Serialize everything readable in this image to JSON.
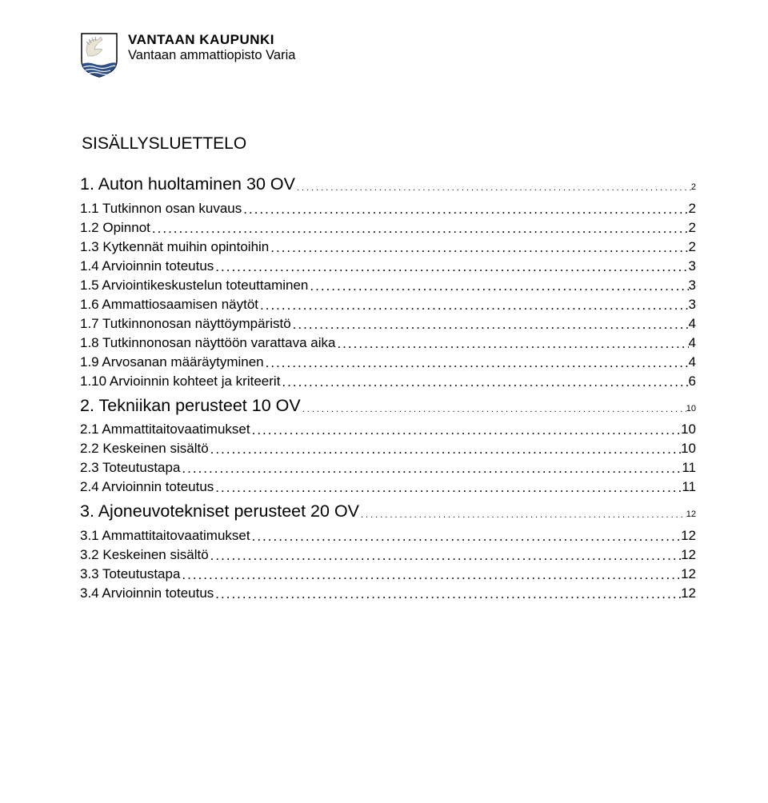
{
  "header": {
    "title": "VANTAAN KAUPUNKI",
    "subtitle": "Vantaan ammattiopisto Varia"
  },
  "toc_title": "SISÄLLYSLUETTELO",
  "entries": [
    {
      "level": 1,
      "label": "1. Auton huoltaminen 30 OV",
      "page": "2"
    },
    {
      "level": 2,
      "label": "1.1 Tutkinnon osan kuvaus",
      "page": "2"
    },
    {
      "level": 2,
      "label": "1.2 Opinnot",
      "page": "2"
    },
    {
      "level": 2,
      "label": "1.3 Kytkennät muihin opintoihin",
      "page": "2"
    },
    {
      "level": 2,
      "label": "1.4 Arvioinnin toteutus",
      "page": "3"
    },
    {
      "level": 2,
      "label": "1.5 Arviointikeskustelun toteuttaminen",
      "page": "3"
    },
    {
      "level": 2,
      "label": "1.6 Ammattiosaamisen näytöt",
      "page": "3"
    },
    {
      "level": 2,
      "label": "1.7 Tutkinnonosan näyttöympäristö",
      "page": "4"
    },
    {
      "level": 2,
      "label": "1.8 Tutkinnonosan näyttöön varattava aika",
      "page": "4"
    },
    {
      "level": 2,
      "label": "1.9 Arvosanan määräytyminen",
      "page": "4"
    },
    {
      "level": 2,
      "label": "1.10 Arvioinnin kohteet ja kriteerit",
      "page": "6"
    },
    {
      "level": 1,
      "label": "2. Tekniikan perusteet 10 OV",
      "page": "10"
    },
    {
      "level": 2,
      "label": "2.1 Ammattitaitovaatimukset",
      "page": "10"
    },
    {
      "level": 2,
      "label": "2.2 Keskeinen sisältö",
      "page": "10"
    },
    {
      "level": 2,
      "label": "2.3 Toteutustapa",
      "page": "11"
    },
    {
      "level": 2,
      "label": "2.4 Arvioinnin toteutus",
      "page": "11"
    },
    {
      "level": 1,
      "label": "3. Ajoneuvotekniset perusteet 20 OV",
      "page": "12"
    },
    {
      "level": 2,
      "label": "3.1 Ammattitaitovaatimukset",
      "page": "12"
    },
    {
      "level": 2,
      "label": "3.2 Keskeinen sisältö",
      "page": "12"
    },
    {
      "level": 2,
      "label": "3.3 Toteutustapa",
      "page": "12"
    },
    {
      "level": 2,
      "label": "3.4 Arvioinnin toteutus",
      "page": "12"
    }
  ],
  "colors": {
    "crest_stroke": "#000000",
    "crest_waves": "#2c4f8a",
    "crest_bird": "#e8e3d3",
    "text": "#000000",
    "background": "#ffffff"
  }
}
